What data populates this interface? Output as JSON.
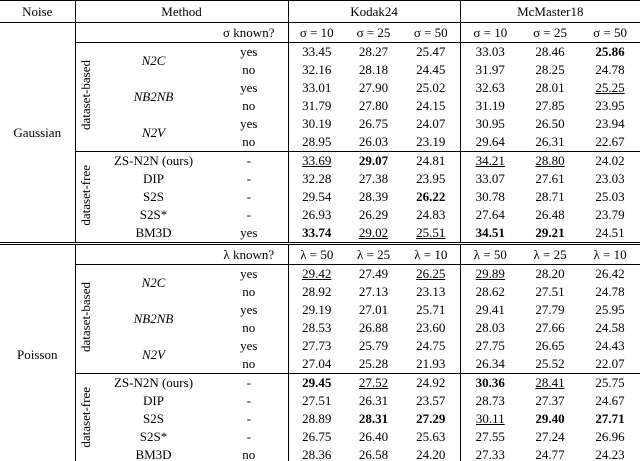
{
  "header": {
    "noise": "Noise",
    "method": "Method",
    "datasets": [
      "Kodak24",
      "McMaster18"
    ]
  },
  "sections": [
    {
      "noise": "Gaussian",
      "known_label": "σ known?",
      "levels": [
        "σ = 10",
        "σ = 25",
        "σ = 50",
        "σ = 10",
        "σ = 25",
        "σ = 50"
      ],
      "groups": [
        {
          "label": "dataset-based",
          "method_font": "italic",
          "methods": [
            {
              "name": "N2C",
              "rows": [
                {
                  "known": "yes",
                  "cells": [
                    "33.45",
                    "28.27",
                    "25.47",
                    "33.03",
                    "28.46",
                    {
                      "value": "25.86",
                      "style": "bold"
                    }
                  ]
                },
                {
                  "known": "no",
                  "cells": [
                    "32.16",
                    "28.18",
                    "24.45",
                    "31.97",
                    "28.25",
                    "24.78"
                  ]
                }
              ]
            },
            {
              "name": "NB2NB",
              "rows": [
                {
                  "known": "yes",
                  "cells": [
                    "33.01",
                    "27.90",
                    "25.02",
                    "32.63",
                    "28.01",
                    {
                      "value": "25.25",
                      "style": "underline"
                    }
                  ]
                },
                {
                  "known": "no",
                  "cells": [
                    "31.79",
                    "27.80",
                    "24.15",
                    "31.19",
                    "27.85",
                    "23.95"
                  ]
                }
              ]
            },
            {
              "name": "N2V",
              "rows": [
                {
                  "known": "yes",
                  "cells": [
                    "30.19",
                    "26.75",
                    "24.07",
                    "30.95",
                    "26.50",
                    "23.94"
                  ]
                },
                {
                  "known": "no",
                  "cells": [
                    "28.95",
                    "26.03",
                    "23.19",
                    "29.64",
                    "26.31",
                    "22.67"
                  ]
                }
              ]
            }
          ]
        },
        {
          "label": "dataset-free",
          "method_font": "normal",
          "methods": [
            {
              "name": "ZS-N2N (ours)",
              "rows": [
                {
                  "known": "-",
                  "cells": [
                    {
                      "value": "33.69",
                      "style": "underline"
                    },
                    {
                      "value": "29.07",
                      "style": "bold"
                    },
                    "24.81",
                    {
                      "value": "34.21",
                      "style": "underline"
                    },
                    {
                      "value": "28.80",
                      "style": "underline"
                    },
                    "24.02"
                  ]
                }
              ]
            },
            {
              "name": "DIP",
              "rows": [
                {
                  "known": "-",
                  "cells": [
                    "32.28",
                    "27.38",
                    "23.95",
                    "33.07",
                    "27.61",
                    "23.03"
                  ]
                }
              ]
            },
            {
              "name": "S2S",
              "rows": [
                {
                  "known": "-",
                  "cells": [
                    "29.54",
                    "28.39",
                    {
                      "value": "26.22",
                      "style": "bold"
                    },
                    "30.78",
                    "28.71",
                    "25.03"
                  ]
                }
              ]
            },
            {
              "name": "S2S*",
              "rows": [
                {
                  "known": "-",
                  "cells": [
                    "26.93",
                    "26.29",
                    "24.83",
                    "27.64",
                    "26.48",
                    "23.79"
                  ]
                }
              ]
            },
            {
              "name": "BM3D",
              "rows": [
                {
                  "known": "yes",
                  "cells": [
                    {
                      "value": "33.74",
                      "style": "bold"
                    },
                    {
                      "value": "29.02",
                      "style": "underline"
                    },
                    {
                      "value": "25.51",
                      "style": "underline"
                    },
                    {
                      "value": "34.51",
                      "style": "bold"
                    },
                    {
                      "value": "29.21",
                      "style": "bold"
                    },
                    "24.51"
                  ]
                }
              ]
            }
          ]
        }
      ]
    },
    {
      "noise": "Poisson",
      "known_label": "λ known?",
      "levels": [
        "λ = 50",
        "λ = 25",
        "λ = 10",
        "λ = 50",
        "λ = 25",
        "λ = 10"
      ],
      "groups": [
        {
          "label": "dataset-based",
          "method_font": "italic",
          "methods": [
            {
              "name": "N2C",
              "rows": [
                {
                  "known": "yes",
                  "cells": [
                    {
                      "value": "29.42",
                      "style": "underline"
                    },
                    "27.49",
                    {
                      "value": "26.25",
                      "style": "underline"
                    },
                    {
                      "value": "29.89",
                      "style": "underline"
                    },
                    "28.20",
                    "26.42"
                  ]
                },
                {
                  "known": "no",
                  "cells": [
                    "28.92",
                    "27.13",
                    "23.13",
                    "28.62",
                    "27.51",
                    "24.78"
                  ]
                }
              ]
            },
            {
              "name": "NB2NB",
              "rows": [
                {
                  "known": "yes",
                  "cells": [
                    "29.19",
                    "27.01",
                    "25.71",
                    "29.41",
                    "27.79",
                    "25.95"
                  ]
                },
                {
                  "known": "no",
                  "cells": [
                    "28.53",
                    "26.88",
                    "23.60",
                    "28.03",
                    "27.66",
                    "24.58"
                  ]
                }
              ]
            },
            {
              "name": "N2V",
              "rows": [
                {
                  "known": "yes",
                  "cells": [
                    "27.73",
                    "25.79",
                    "24.75",
                    "27.75",
                    "26.65",
                    "24.43"
                  ]
                },
                {
                  "known": "no",
                  "cells": [
                    "27.04",
                    "25.28",
                    "21.93",
                    "26.34",
                    "25.52",
                    "22.07"
                  ]
                }
              ]
            }
          ]
        },
        {
          "label": "dataset-free",
          "method_font": "normal",
          "methods": [
            {
              "name": "ZS-N2N (ours)",
              "rows": [
                {
                  "known": "-",
                  "cells": [
                    {
                      "value": "29.45",
                      "style": "bold"
                    },
                    {
                      "value": "27.52",
                      "style": "underline"
                    },
                    "24.92",
                    {
                      "value": "30.36",
                      "style": "bold"
                    },
                    {
                      "value": "28.41",
                      "style": "underline"
                    },
                    "25.75"
                  ]
                }
              ]
            },
            {
              "name": "DIP",
              "rows": [
                {
                  "known": "-",
                  "cells": [
                    "27.51",
                    "26.31",
                    "23.57",
                    "28.73",
                    "27.37",
                    "24.67"
                  ]
                }
              ]
            },
            {
              "name": "S2S",
              "rows": [
                {
                  "known": "-",
                  "cells": [
                    "28.89",
                    {
                      "value": "28.31",
                      "style": "bold"
                    },
                    {
                      "value": "27.29",
                      "style": "bold"
                    },
                    {
                      "value": "30.11",
                      "style": "underline"
                    },
                    {
                      "value": "29.40",
                      "style": "bold"
                    },
                    {
                      "value": "27.71",
                      "style": "bold"
                    }
                  ]
                }
              ]
            },
            {
              "name": "S2S*",
              "rows": [
                {
                  "known": "-",
                  "cells": [
                    "26.75",
                    "26.40",
                    "25.63",
                    "27.55",
                    "27.24",
                    "26.96"
                  ]
                }
              ]
            },
            {
              "name": "BM3D",
              "rows": [
                {
                  "known": "no",
                  "cells": [
                    "28.36",
                    "26.58",
                    "24.20",
                    "27.33",
                    "24.77",
                    "24.23"
                  ]
                }
              ]
            }
          ]
        }
      ]
    }
  ]
}
